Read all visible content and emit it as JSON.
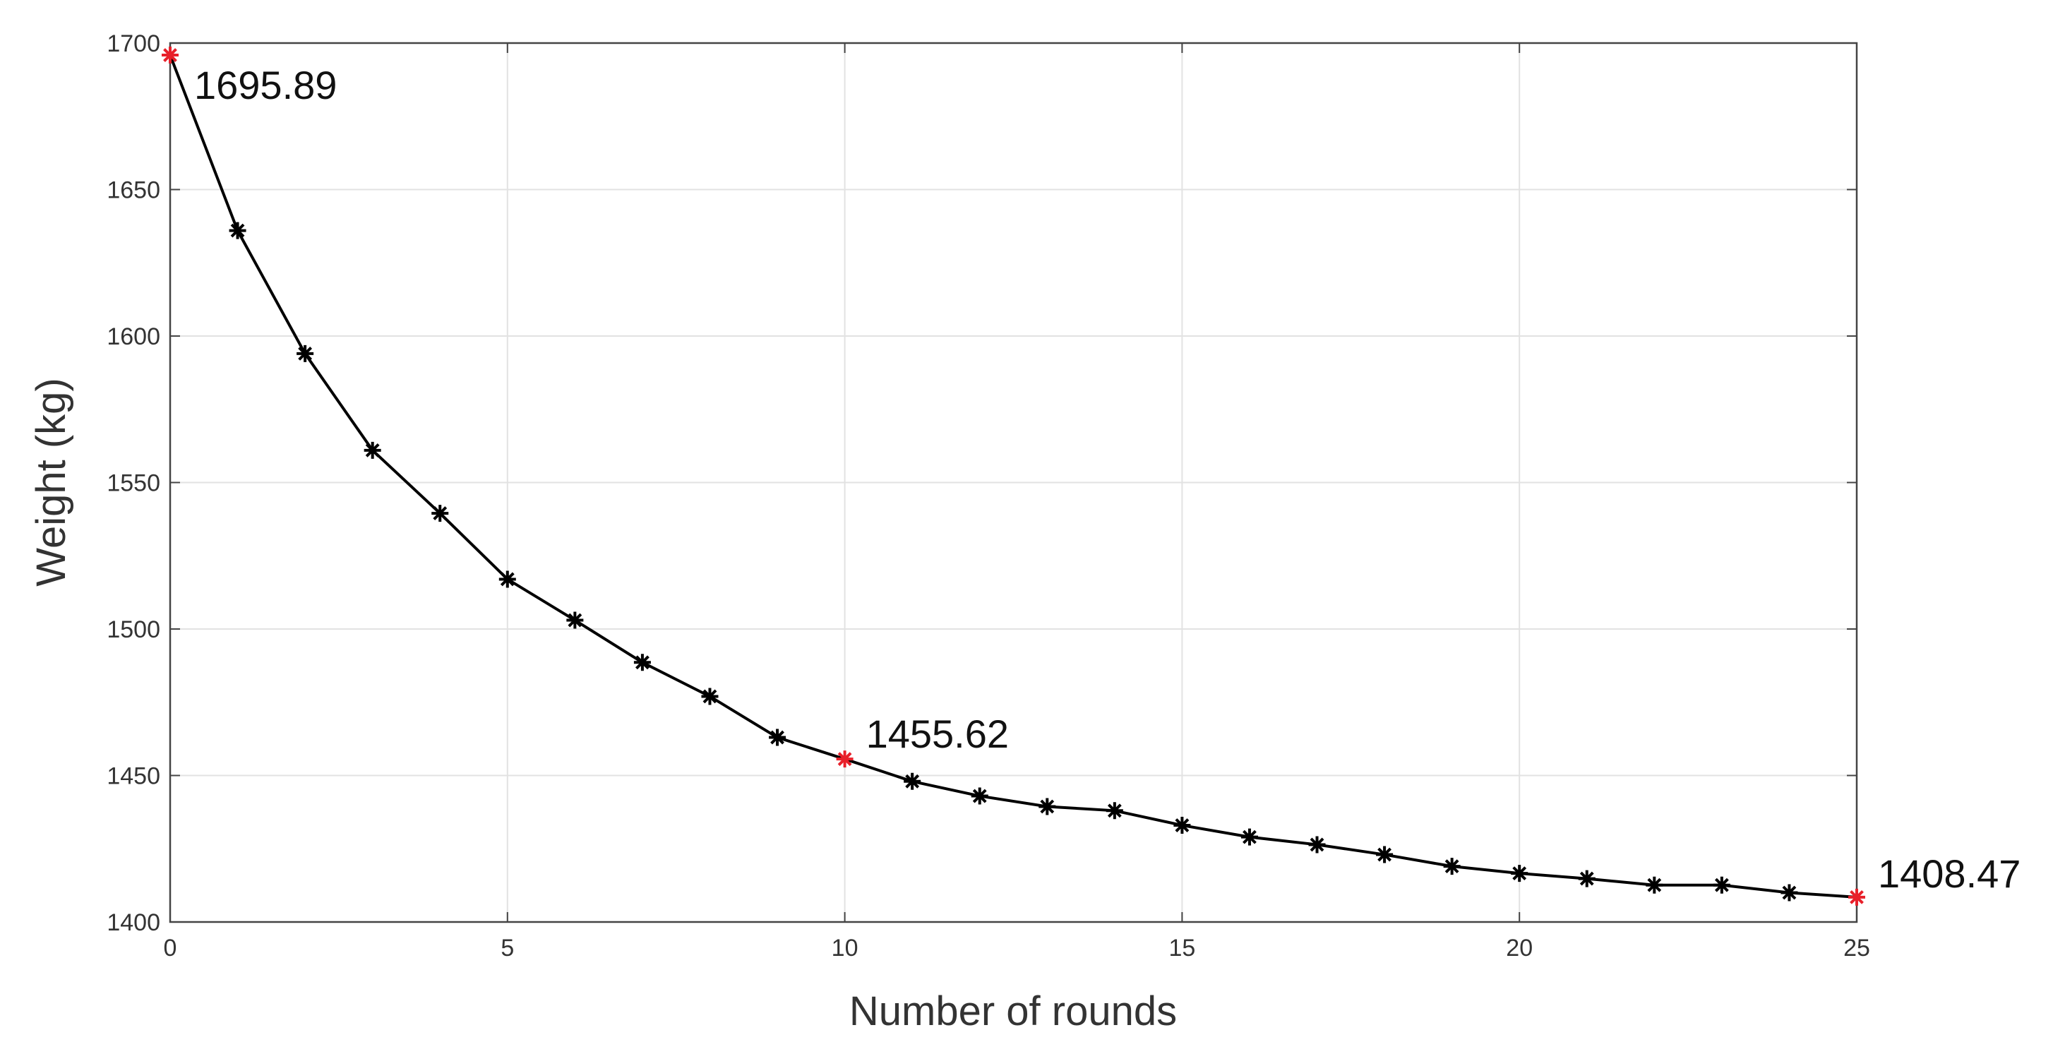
{
  "chart_data": {
    "type": "line",
    "x_label": "Number of rounds",
    "y_label": "Weight (kg)",
    "x": [
      0,
      1,
      2,
      3,
      4,
      5,
      6,
      7,
      8,
      9,
      10,
      11,
      12,
      13,
      14,
      15,
      16,
      17,
      18,
      19,
      20,
      21,
      22,
      23,
      24,
      25
    ],
    "series": [
      {
        "color": "#000000",
        "values": [
          1695.89,
          1636,
          1594,
          1561,
          1539.5,
          1517,
          1503,
          1488.6,
          1477,
          1463,
          1455.62,
          1448,
          1443,
          1439.4,
          1438,
          1433,
          1429,
          1426.4,
          1423,
          1419,
          1416.6,
          1414.8,
          1412.6,
          1412.6,
          1410,
          1408.47
        ]
      }
    ],
    "highlighted_points": [
      0,
      10,
      25
    ],
    "highlight_color": "#e8202a",
    "xlim": [
      0,
      25
    ],
    "xticks": [
      0,
      5,
      10,
      15,
      20,
      25
    ],
    "ylim": [
      1400,
      1700
    ],
    "yticks": [
      1400,
      1450,
      1500,
      1550,
      1600,
      1650,
      1700
    ],
    "grid": true
  }
}
